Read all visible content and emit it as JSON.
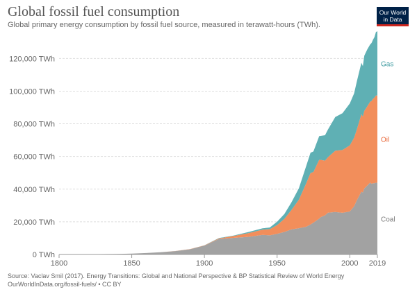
{
  "header": {
    "title": "Global fossil fuel consumption",
    "subtitle": "Global primary energy consumption by fossil fuel source, measured in terawatt-hours (TWh).",
    "logo_line1": "Our World",
    "logo_line2": "in Data"
  },
  "footer": {
    "source": "Source: Vaclav Smil (2017). Energy Transitions: Global and National Perspective & BP Statistical Review of World Energy",
    "url": "OurWorldInData.org/fossil-fuels/",
    "license": "• CC BY"
  },
  "colors": {
    "coal": "#a2a2a2",
    "oil": "#f28e5b",
    "gas": "#5fb0b4",
    "coal_label": "#7a7a7a",
    "oil_label": "#e8683a",
    "gas_label": "#3d9aa0"
  },
  "chart_data": {
    "type": "area",
    "stacked": true,
    "xlim": [
      1800,
      2019
    ],
    "ylim": [
      0,
      135000
    ],
    "x_ticks": [
      "1800",
      "1850",
      "1900",
      "1950",
      "2000",
      "2019"
    ],
    "x_tick_values": [
      1800,
      1850,
      1900,
      1950,
      2000,
      2019
    ],
    "y_ticks": [
      "0 TWh",
      "20,000 TWh",
      "40,000 TWh",
      "60,000 TWh",
      "80,000 TWh",
      "100,000 TWh",
      "120,000 TWh"
    ],
    "y_tick_values": [
      0,
      20000,
      40000,
      60000,
      80000,
      100000,
      120000
    ],
    "grid": true,
    "legend": "inline-right",
    "x": [
      1800,
      1820,
      1840,
      1850,
      1860,
      1870,
      1880,
      1890,
      1900,
      1910,
      1920,
      1930,
      1940,
      1945,
      1950,
      1955,
      1960,
      1965,
      1970,
      1973,
      1975,
      1979,
      1980,
      1983,
      1985,
      1990,
      1995,
      2000,
      2003,
      2005,
      2008,
      2009,
      2010,
      2012,
      2014,
      2015,
      2016,
      2017,
      2018,
      2019
    ],
    "series": [
      {
        "name": "Coal",
        "values": [
          97,
          180,
          350,
          500,
          900,
          1400,
          2100,
          3200,
          5400,
          9500,
          10200,
          10800,
          12000,
          11700,
          12600,
          13800,
          15400,
          16100,
          17000,
          18400,
          19500,
          22000,
          22900,
          24000,
          25600,
          26000,
          25500,
          26300,
          29500,
          33400,
          38400,
          38000,
          40400,
          42200,
          44000,
          43300,
          43600,
          43600,
          44000,
          43800
        ]
      },
      {
        "name": "Oil",
        "values": [
          0,
          0,
          0,
          0,
          0,
          5,
          25,
          100,
          180,
          370,
          1100,
          2200,
          3200,
          3800,
          5400,
          8000,
          12000,
          17500,
          26500,
          31500,
          31000,
          36000,
          35000,
          33500,
          34000,
          37500,
          38500,
          40500,
          42000,
          43500,
          47500,
          46500,
          47500,
          48500,
          49500,
          50700,
          51700,
          52500,
          53300,
          53600
        ]
      },
      {
        "name": "Gas",
        "values": [
          0,
          0,
          0,
          0,
          0,
          0,
          0,
          0,
          60,
          180,
          300,
          650,
          800,
          1000,
          2100,
          3000,
          4700,
          7000,
          10600,
          12400,
          12600,
          14500,
          14700,
          15500,
          16900,
          20700,
          22500,
          25600,
          27100,
          29500,
          31500,
          30800,
          33800,
          34800,
          35000,
          35500,
          36200,
          37000,
          38900,
          39300
        ]
      }
    ]
  }
}
